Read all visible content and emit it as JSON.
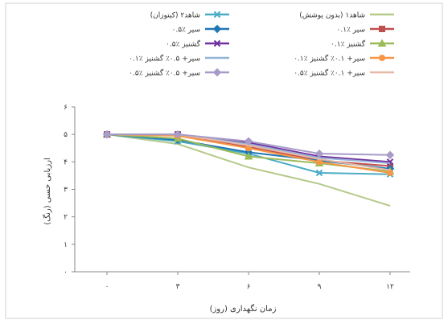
{
  "chart_data": {
    "type": "line",
    "title": "",
    "xlabel": "زمان نگهداری (روز)",
    "ylabel": "ارزیابی حسی (رنگ)",
    "categories": [
      "۰",
      "۳",
      "۶",
      "۹",
      "۱۲"
    ],
    "x": [
      0,
      3,
      6,
      9,
      12
    ],
    "ylim": [
      0,
      6
    ],
    "yticks": [
      "۰",
      "۱",
      "۲",
      "۳",
      "۴",
      "۵",
      "۶"
    ],
    "grid": false,
    "legend_position": "top",
    "series": [
      {
        "name": "شاهد۱ (بدون پوشش)",
        "color": "#b5c98a",
        "marker": "none",
        "values": [
          5.0,
          4.65,
          3.8,
          3.2,
          2.4
        ]
      },
      {
        "name": "شاهد۲ (کیتوزان)",
        "color": "#4bacc6",
        "marker": "x",
        "values": [
          5.0,
          4.75,
          4.3,
          3.6,
          3.55
        ]
      },
      {
        "name": "۰.۱٪ سیر",
        "color": "#c0504d",
        "marker": "square",
        "values": [
          5.0,
          5.0,
          4.55,
          4.05,
          3.85
        ]
      },
      {
        "name": "۰.۵٪ سیر",
        "color": "#1f77b4",
        "marker": "diamond",
        "values": [
          5.0,
          4.8,
          4.35,
          4.05,
          3.75
        ]
      },
      {
        "name": "۰.۱٪ گشنیز",
        "color": "#9bbb59",
        "marker": "triangle",
        "values": [
          5.0,
          4.85,
          4.2,
          3.95,
          3.65
        ]
      },
      {
        "name": "۰.۵٪ گشنیز",
        "color": "#7030a0",
        "marker": "x",
        "values": [
          5.0,
          5.0,
          4.7,
          4.2,
          4.0
        ]
      },
      {
        "name": "۰.۱٪ سیر+ ۰.۱٪ گشنیز",
        "color": "#f79646",
        "marker": "circle",
        "values": [
          5.0,
          4.95,
          4.5,
          4.0,
          3.6
        ]
      },
      {
        "name": "۰.۱٪ سیر+ ۰.۵٪ گشنیز",
        "color": "#95b3d7",
        "marker": "none",
        "values": [
          5.0,
          5.0,
          4.65,
          4.15,
          3.95
        ]
      },
      {
        "name": "۰.۵٪ سیر+ ۰.۱٪ گشنیز",
        "color": "#e6b9a6",
        "marker": "none",
        "values": [
          5.0,
          5.0,
          4.6,
          4.1,
          3.7
        ]
      },
      {
        "name": "۰.۵٪ سیر+ ۰.۵٪ گشنیز",
        "color": "#a79bc8",
        "marker": "diamond",
        "values": [
          5.0,
          5.0,
          4.75,
          4.3,
          4.25
        ]
      }
    ]
  }
}
